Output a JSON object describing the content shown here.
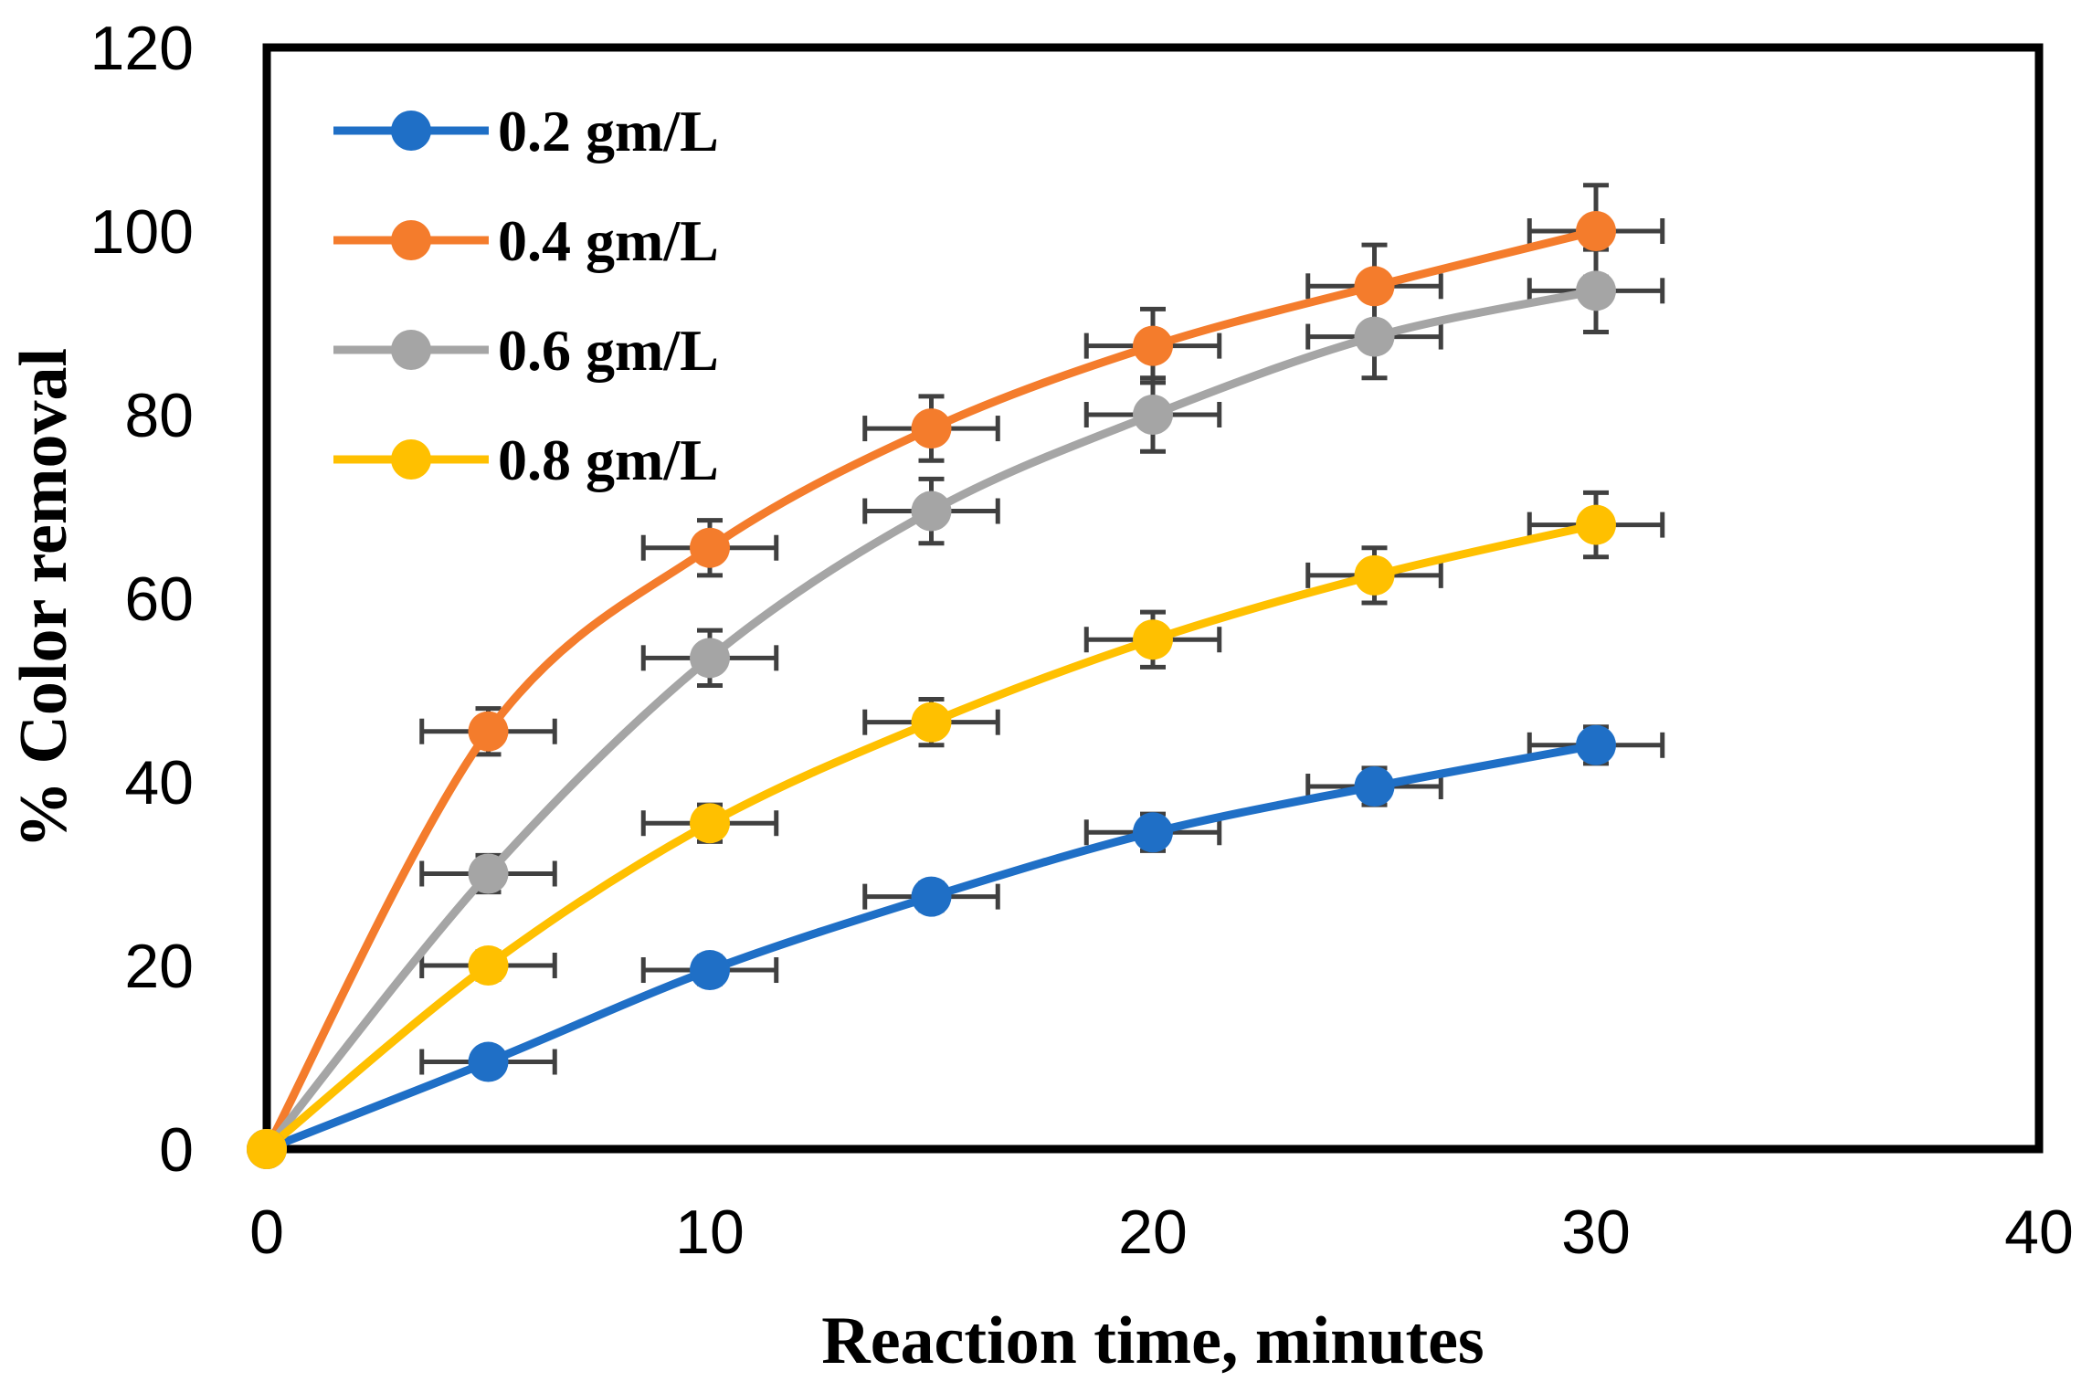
{
  "chart_data": {
    "type": "line",
    "xlabel": "Reaction time, minutes",
    "ylabel": "% Color removal",
    "xlim": [
      0,
      40
    ],
    "ylim": [
      0,
      120
    ],
    "xticks": [
      0,
      10,
      20,
      30,
      40
    ],
    "yticks": [
      0,
      20,
      40,
      60,
      80,
      100,
      120
    ],
    "grid": false,
    "legend_position": "top-left",
    "x": [
      0,
      5,
      10,
      15,
      20,
      25,
      30
    ],
    "error_bars": {
      "x_error": 1.5
    },
    "series": [
      {
        "name": "0.2 gm/L",
        "color": "#1f6fc6",
        "values": [
          0,
          9.5,
          19.5,
          27.5,
          34.5,
          39.5,
          44
        ],
        "y_error": [
          0,
          1,
          1.5,
          1.5,
          2,
          2,
          2
        ]
      },
      {
        "name": "0.4 gm/L",
        "color": "#f47c2c",
        "values": [
          0,
          45.5,
          65.5,
          78.5,
          87.5,
          94,
          100
        ],
        "y_error": [
          0,
          2.5,
          3,
          3.5,
          4,
          4.5,
          5
        ]
      },
      {
        "name": "0.6 gm/L",
        "color": "#a5a5a5",
        "values": [
          0,
          30,
          53.5,
          69.5,
          80,
          88.5,
          93.5
        ],
        "y_error": [
          0,
          2,
          3,
          3.5,
          4,
          4.5,
          4.5
        ]
      },
      {
        "name": "0.8 gm/L",
        "color": "#ffc000",
        "values": [
          0,
          20,
          35.5,
          46.5,
          55.5,
          62.5,
          68
        ],
        "y_error": [
          0,
          1.5,
          2,
          2.5,
          3,
          3,
          3.5
        ]
      }
    ]
  }
}
